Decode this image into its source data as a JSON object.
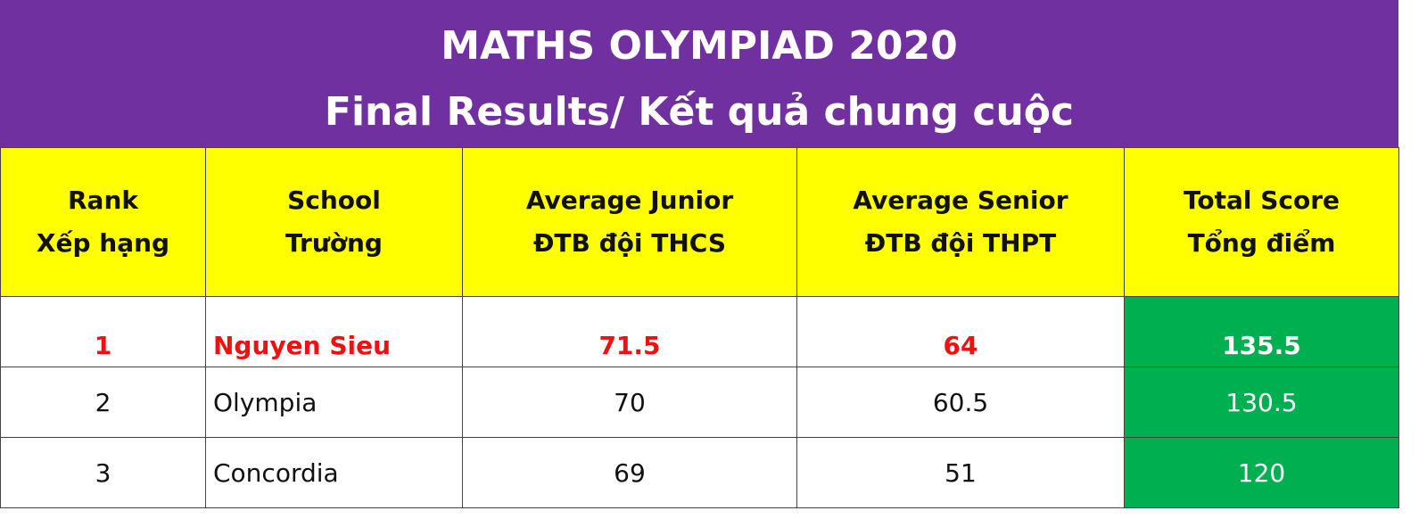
{
  "header": {
    "title": "MATHS OLYMPIAD 2020",
    "subtitle": "Final Results/ Kết quả chung cuộc"
  },
  "table": {
    "columns": [
      [
        "Rank",
        "Xếp hạng"
      ],
      [
        "School",
        "Trường"
      ],
      [
        "Average Junior",
        "ĐTB đội THCS"
      ],
      [
        "Average Senior",
        "ĐTB đội THPT"
      ],
      [
        "Total Score",
        "Tổng điểm"
      ]
    ],
    "rows": [
      [
        "1",
        "Nguyen Sieu",
        "71.5",
        "64",
        "135.5"
      ],
      [
        "2",
        "Olympia",
        "70",
        "60.5",
        "130.5"
      ],
      [
        "3",
        "Concordia",
        "69",
        "51",
        "120"
      ]
    ]
  }
}
